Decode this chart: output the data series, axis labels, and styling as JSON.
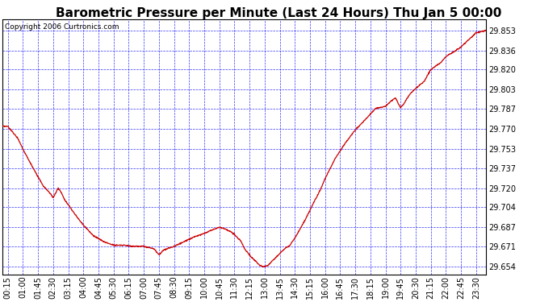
{
  "title": "Barometric Pressure per Minute (Last 24 Hours) Thu Jan 5 00:00",
  "copyright": "Copyright 2006 Curtronics.com",
  "yticks": [
    29.654,
    29.671,
    29.687,
    29.704,
    29.72,
    29.737,
    29.753,
    29.77,
    29.787,
    29.803,
    29.82,
    29.836,
    29.853
  ],
  "ylim": [
    29.647,
    29.862
  ],
  "xtick_labels": [
    "00:15",
    "01:00",
    "01:45",
    "02:30",
    "03:15",
    "04:00",
    "04:45",
    "05:30",
    "06:15",
    "07:00",
    "07:45",
    "08:30",
    "09:15",
    "10:00",
    "10:45",
    "11:30",
    "12:15",
    "13:00",
    "13:45",
    "14:30",
    "15:15",
    "16:00",
    "16:45",
    "17:30",
    "18:15",
    "19:00",
    "19:45",
    "20:30",
    "21:15",
    "22:00",
    "22:45",
    "23:30"
  ],
  "background_color": "#ffffff",
  "plot_bg_color": "#ffffff",
  "grid_color": "#0000ff",
  "line_color": "#cc0000",
  "title_fontsize": 11,
  "tick_fontsize": 7,
  "copyright_fontsize": 6.5,
  "border_color": "#000000"
}
